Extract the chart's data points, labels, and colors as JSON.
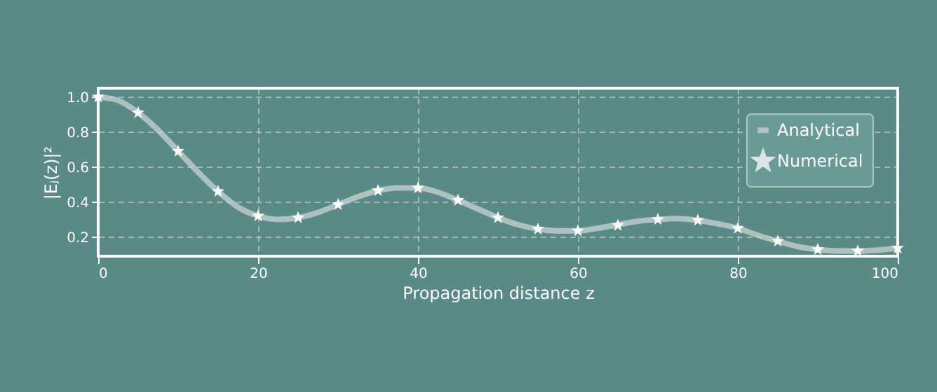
{
  "chart_data": {
    "type": "line",
    "xlabel": "Propagation distance z",
    "ylabel": "|Eⱼ(z)|²",
    "xlim": [
      0,
      100
    ],
    "xticks": [
      0,
      20,
      40,
      60,
      80,
      100
    ],
    "ylim": [
      0.09,
      1.05
    ],
    "yticks": [
      0.2,
      0.4,
      0.6,
      0.8,
      {
        "value": 1,
        "label": "1.0"
      }
    ],
    "grid": true,
    "legend": "top right",
    "series": [
      {
        "name": "Analytical",
        "type": "line",
        "color": "#c9d3d2",
        "line_style": "solid",
        "marker": "none",
        "x": [
          0,
          2.5,
          5,
          7.5,
          10,
          12.5,
          15,
          17.5,
          20,
          22.5,
          25,
          27.5,
          30,
          32.5,
          35,
          37.5,
          40,
          42.5,
          45,
          47.5,
          50,
          52.5,
          55,
          57.5,
          60,
          62.5,
          65,
          67.5,
          70,
          72.5,
          75,
          77.5,
          80,
          82.5,
          85,
          87.5,
          90,
          92.5,
          95,
          97.5,
          100
        ],
        "values": [
          1.0,
          0.98,
          0.91,
          0.81,
          0.69,
          0.57,
          0.46,
          0.37,
          0.32,
          0.3,
          0.31,
          0.34,
          0.385,
          0.43,
          0.465,
          0.48,
          0.48,
          0.455,
          0.41,
          0.36,
          0.31,
          0.27,
          0.245,
          0.235,
          0.235,
          0.25,
          0.27,
          0.29,
          0.3,
          0.305,
          0.295,
          0.275,
          0.25,
          0.21,
          0.176,
          0.145,
          0.128,
          0.12,
          0.12,
          0.125,
          0.136
        ]
      },
      {
        "name": "Numerical",
        "type": "scatter",
        "color": "#ffffff",
        "marker": "star",
        "x": [
          0,
          5,
          10,
          15,
          20,
          25,
          30,
          35,
          40,
          45,
          50,
          55,
          60,
          65,
          70,
          75,
          80,
          85,
          90,
          95,
          100
        ],
        "values": [
          1.0,
          0.91,
          0.69,
          0.46,
          0.32,
          0.31,
          0.385,
          0.465,
          0.48,
          0.41,
          0.31,
          0.245,
          0.235,
          0.266,
          0.3,
          0.295,
          0.25,
          0.176,
          0.128,
          0.12,
          0.136
        ]
      }
    ]
  }
}
